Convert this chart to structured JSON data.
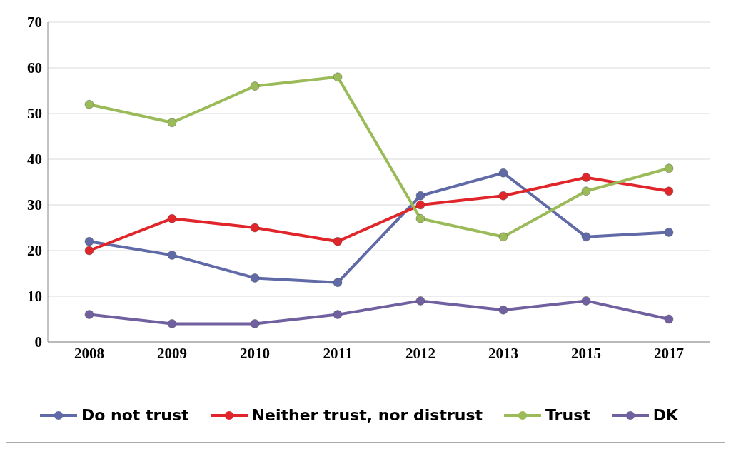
{
  "chart_data": {
    "type": "line",
    "categories": [
      "2008",
      "2009",
      "2010",
      "2011",
      "2012",
      "2013",
      "2015",
      "2017"
    ],
    "series": [
      {
        "name": "Do not trust",
        "color": "#5f6aa6",
        "values": [
          22,
          19,
          14,
          13,
          32,
          37,
          23,
          24
        ]
      },
      {
        "name": "Neither trust, nor distrust",
        "color": "#e0262a",
        "values": [
          20,
          27,
          25,
          22,
          30,
          32,
          36,
          33
        ]
      },
      {
        "name": "Trust",
        "color": "#9bbb59",
        "values": [
          52,
          48,
          56,
          58,
          27,
          23,
          33,
          38
        ]
      },
      {
        "name": "DK",
        "color": "#7160a0",
        "values": [
          6,
          4,
          4,
          6,
          9,
          7,
          9,
          5
        ]
      }
    ],
    "ylim": [
      0,
      70
    ],
    "yticks": [
      0,
      10,
      20,
      30,
      40,
      50,
      60,
      70
    ],
    "grid": "y",
    "legend": "bottom",
    "marker": "circle",
    "line_style": "solid"
  }
}
